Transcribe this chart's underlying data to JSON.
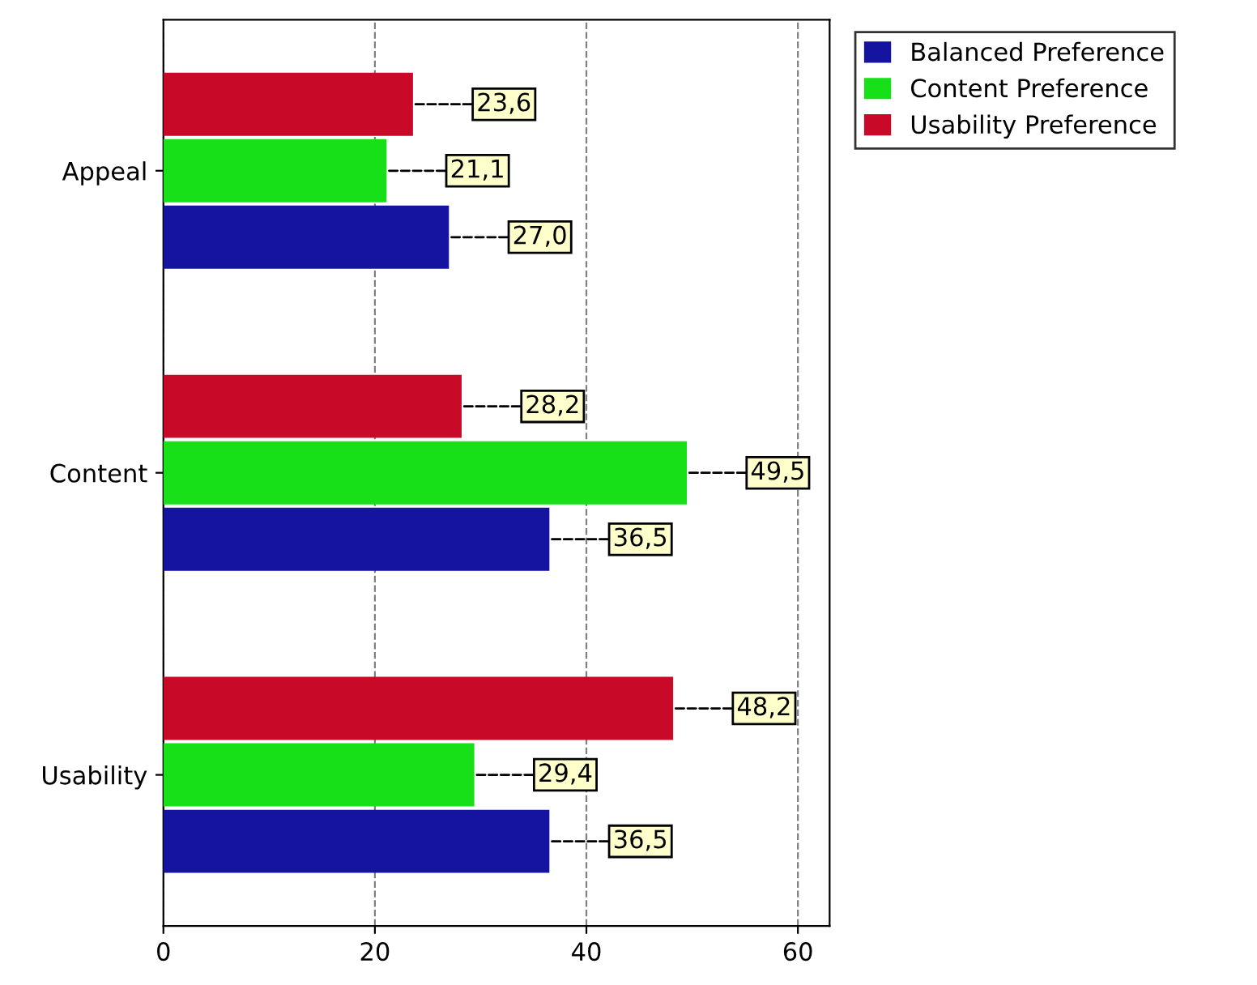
{
  "chart_data": {
    "type": "bar",
    "orientation": "horizontal",
    "categories": [
      "Appeal",
      "Content",
      "Usability"
    ],
    "series": [
      {
        "name": "Balanced Preference",
        "color": "#1414a0",
        "values": [
          27.0,
          36.5,
          36.5
        ],
        "value_labels": [
          "27,0",
          "36,5",
          "36,5"
        ]
      },
      {
        "name": "Content Preference",
        "color": "#18e018",
        "values": [
          21.1,
          49.5,
          29.4
        ],
        "value_labels": [
          "21,1",
          "49,5",
          "29,4"
        ]
      },
      {
        "name": "Usability Preference",
        "color": "#c80a28",
        "values": [
          23.6,
          28.2,
          48.2
        ],
        "value_labels": [
          "23,6",
          "28,2",
          "48,2"
        ]
      }
    ],
    "xlim": [
      0,
      63
    ],
    "xticks": [
      0,
      20,
      40,
      60
    ],
    "grid": "x",
    "legend": "top right"
  }
}
